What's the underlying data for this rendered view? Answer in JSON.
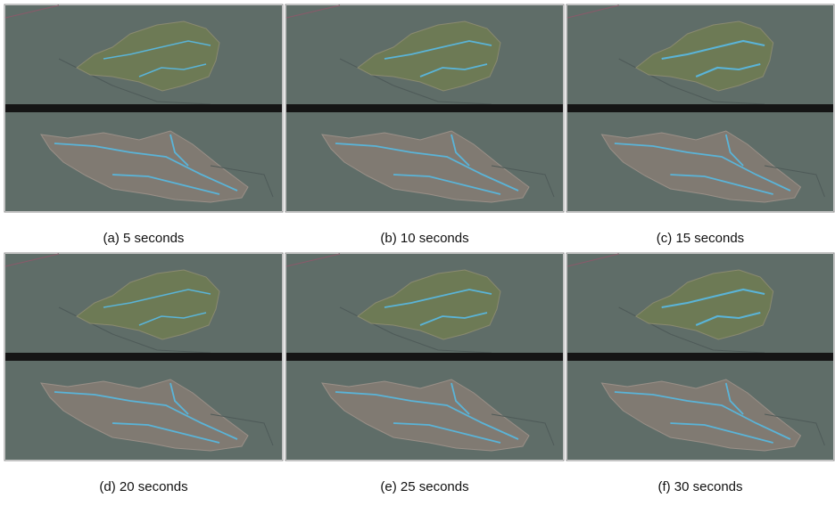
{
  "panels": [
    {
      "caption": "(a) 5 seconds"
    },
    {
      "caption": "(b) 10 seconds"
    },
    {
      "caption": "(c) 15 seconds"
    },
    {
      "caption": "(d) 20 seconds"
    },
    {
      "caption": "(e) 25 seconds"
    },
    {
      "caption": "(f) 30 seconds"
    }
  ]
}
